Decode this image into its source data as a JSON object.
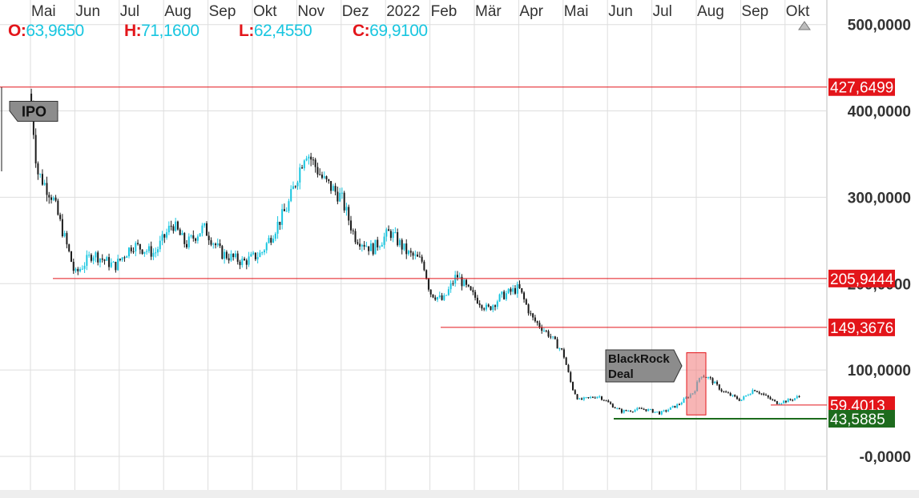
{
  "ohlc": {
    "open_label": "O:",
    "open": "63,9650",
    "high_label": "H:",
    "high": "71,1600",
    "low_label": "L:",
    "low": "62,4550",
    "close_label": "C:",
    "close": "69,9100"
  },
  "colors": {
    "candle_up": "#19c6e0",
    "candle_down": "#1a1a1a",
    "resistance_line": "#e3151a",
    "support_line": "#1d6b1d",
    "price_tag_red": "#e3151a",
    "price_tag_green": "#1d6b1d",
    "grid": "#dedede",
    "ohlc_label": "#e3151a",
    "ohlc_value": "#19c6e0"
  },
  "chart_data": {
    "type": "candlestick",
    "x_axis": {
      "tick_labels": [
        "Mai",
        "Jun",
        "Jul",
        "Aug",
        "Sep",
        "Okt",
        "Nov",
        "Dez",
        "2022",
        "Feb",
        "Mär",
        "Apr",
        "Mai",
        "Jun",
        "Jul",
        "Aug",
        "Sep",
        "Okt"
      ]
    },
    "y_axis": {
      "range": [
        -50,
        510
      ],
      "ticks": [
        {
          "value": 500,
          "label": "500,0000"
        },
        {
          "value": 400,
          "label": "400,0000"
        },
        {
          "value": 300,
          "label": "300,0000"
        },
        {
          "value": 200,
          "label": "200,0000"
        },
        {
          "value": 100,
          "label": "100,0000"
        },
        {
          "value": 0,
          "label": "-0,0000"
        }
      ]
    },
    "grid": true,
    "series_close_approx": [
      {
        "month": "Mai 2021",
        "value": 330
      },
      {
        "month": "Jun 2021",
        "value": 240
      },
      {
        "month": "Jul 2021",
        "value": 235
      },
      {
        "month": "Aug 2021",
        "value": 258
      },
      {
        "month": "Sep 2021",
        "value": 235
      },
      {
        "month": "Okt 2021",
        "value": 255
      },
      {
        "month": "Nov 2021",
        "value": 350
      },
      {
        "month": "Dez 2021",
        "value": 260
      },
      {
        "month": "Jan 2022",
        "value": 250
      },
      {
        "month": "Feb 2022",
        "value": 185
      },
      {
        "month": "Mär 2022",
        "value": 190
      },
      {
        "month": "Apr 2022",
        "value": 170
      },
      {
        "month": "Mai 2022",
        "value": 70
      },
      {
        "month": "Jun 2022",
        "value": 55
      },
      {
        "month": "Jul 2022",
        "value": 60
      },
      {
        "month": "Aug 2022",
        "value": 95
      },
      {
        "month": "Sep 2022",
        "value": 65
      },
      {
        "month": "Okt 2022",
        "value": 69.91
      }
    ],
    "horizontal_lines": [
      {
        "value": 427.6499,
        "label": "427,6499",
        "color": "red"
      },
      {
        "value": 205.9444,
        "label": "205,9444",
        "color": "red"
      },
      {
        "value": 149.3676,
        "label": "149,3676",
        "color": "red"
      },
      {
        "value": 59.4013,
        "label": "59,4013",
        "color": "red"
      },
      {
        "value": 43.5885,
        "label": "43,5885",
        "color": "green"
      }
    ],
    "annotations": [
      {
        "text": "IPO",
        "type": "flag"
      },
      {
        "text_lines": [
          "BlackRock",
          "Deal"
        ],
        "type": "flag"
      },
      {
        "type": "highlight-box",
        "color": "red",
        "month": "Aug 2022"
      }
    ]
  }
}
